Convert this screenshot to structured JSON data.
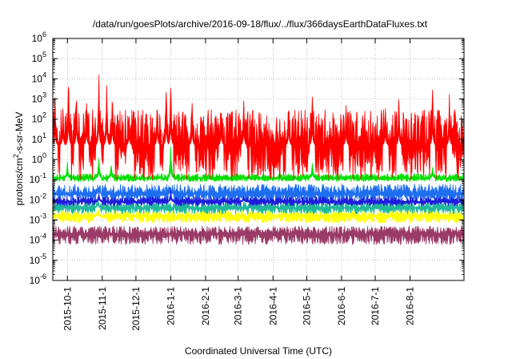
{
  "chart_data": {
    "type": "line",
    "title": "/data/run/goesPlots/archive/2016-09-18/flux/../flux/366daysEarthDataFluxes.txt",
    "xlabel": "Coordinated Universal Time (UTC)",
    "ylabel_parts": {
      "base": "protons/cm",
      "sup": "2",
      "rest": "-s-sr-MeV"
    },
    "yscale": "log",
    "ylim": [
      1e-06,
      1000000.0
    ],
    "xlim": [
      "2015-09-18",
      "2016-09-18"
    ],
    "grid": true,
    "legend": "none",
    "y_ticks": [
      {
        "value": 1e-06,
        "base": "10",
        "exp": "-6"
      },
      {
        "value": 1e-05,
        "base": "10",
        "exp": "-5"
      },
      {
        "value": 0.0001,
        "base": "10",
        "exp": "-4"
      },
      {
        "value": 0.001,
        "base": "10",
        "exp": "-3"
      },
      {
        "value": 0.01,
        "base": "10",
        "exp": "-2"
      },
      {
        "value": 0.1,
        "base": "10",
        "exp": "-1"
      },
      {
        "value": 1,
        "base": "10",
        "exp": "0"
      },
      {
        "value": 10,
        "base": "10",
        "exp": "1"
      },
      {
        "value": 100,
        "base": "10",
        "exp": "2"
      },
      {
        "value": 1000,
        "base": "10",
        "exp": "3"
      },
      {
        "value": 10000,
        "base": "10",
        "exp": "4"
      },
      {
        "value": 100000,
        "base": "10",
        "exp": "5"
      },
      {
        "value": 1000000,
        "base": "10",
        "exp": "6"
      }
    ],
    "x_ticks": [
      {
        "date": "2015-10-01",
        "label": "2015-10-1"
      },
      {
        "date": "2015-11-01",
        "label": "2015-11-1"
      },
      {
        "date": "2015-12-01",
        "label": "2015-12-1"
      },
      {
        "date": "2016-01-01",
        "label": "2016-1-1"
      },
      {
        "date": "2016-02-01",
        "label": "2016-2-1"
      },
      {
        "date": "2016-03-01",
        "label": "2016-3-1"
      },
      {
        "date": "2016-04-01",
        "label": "2016-4-1"
      },
      {
        "date": "2016-05-01",
        "label": "2016-5-1"
      },
      {
        "date": "2016-06-01",
        "label": "2016-6-1"
      },
      {
        "date": "2016-07-01",
        "label": "2016-7-1"
      },
      {
        "date": "2016-08-01",
        "label": "2016-8-1"
      }
    ],
    "series": [
      {
        "color": "#9a3a66",
        "baseline": 0.0002,
        "low": 6e-05,
        "high": 0.0005,
        "spikes": []
      },
      {
        "color": "#ffff00",
        "baseline": 0.0015,
        "low": 0.0007,
        "high": 0.003,
        "spikes": [
          {
            "date": "2015-10-28",
            "value": 0.005
          }
        ]
      },
      {
        "color": "#20b89a",
        "baseline": 0.004,
        "low": 0.002,
        "high": 0.008,
        "spikes": [
          {
            "date": "2015-10-28",
            "value": 0.02
          }
        ]
      },
      {
        "color": "#1e6ef0",
        "baseline": 0.02,
        "low": 0.008,
        "high": 0.06,
        "spikes": [
          {
            "date": "2015-10-29",
            "value": 0.05
          },
          {
            "date": "2016-01-01",
            "value": 0.05
          }
        ]
      },
      {
        "color": "#1d1ddc",
        "baseline": 0.008,
        "low": 0.005,
        "high": 0.014,
        "spikes": [
          {
            "date": "2015-10-29",
            "value": 0.03
          },
          {
            "date": "2016-01-01",
            "value": 0.04
          },
          {
            "date": "2016-03-06",
            "value": 0.02
          }
        ]
      },
      {
        "color": "#00e000",
        "baseline": 0.12,
        "low": 0.08,
        "high": 0.2,
        "spikes": [
          {
            "date": "2015-10-01",
            "value": 1
          },
          {
            "date": "2015-10-29",
            "value": 2
          },
          {
            "date": "2015-11-09",
            "value": 0.8
          },
          {
            "date": "2016-01-01",
            "value": 10
          },
          {
            "date": "2016-05-06",
            "value": 1
          },
          {
            "date": "2016-08-21",
            "value": 0.6
          }
        ]
      },
      {
        "color": "#ff0000",
        "baseline": 5,
        "low": 0.1,
        "high": 300,
        "spikes": [
          {
            "date": "2015-09-20",
            "value": 3000
          },
          {
            "date": "2015-09-27",
            "value": 1000
          },
          {
            "date": "2015-10-02",
            "value": 60000
          },
          {
            "date": "2015-10-09",
            "value": 8000
          },
          {
            "date": "2015-10-18",
            "value": 2000
          },
          {
            "date": "2015-10-29",
            "value": 40000
          },
          {
            "date": "2015-11-05",
            "value": 20000
          },
          {
            "date": "2015-11-10",
            "value": 6000
          },
          {
            "date": "2015-11-25",
            "value": 300
          },
          {
            "date": "2015-12-20",
            "value": 2000
          },
          {
            "date": "2015-12-28",
            "value": 20000
          },
          {
            "date": "2016-01-01",
            "value": 30000
          },
          {
            "date": "2016-01-20",
            "value": 2000
          },
          {
            "date": "2016-02-15",
            "value": 1000
          },
          {
            "date": "2016-03-06",
            "value": 3000
          },
          {
            "date": "2016-04-15",
            "value": 2000
          },
          {
            "date": "2016-05-06",
            "value": 5000
          },
          {
            "date": "2016-06-05",
            "value": 1000
          },
          {
            "date": "2016-07-10",
            "value": 1000
          },
          {
            "date": "2016-07-22",
            "value": 3000
          },
          {
            "date": "2016-08-21",
            "value": 10000
          },
          {
            "date": "2016-09-05",
            "value": 2000
          }
        ]
      }
    ]
  }
}
